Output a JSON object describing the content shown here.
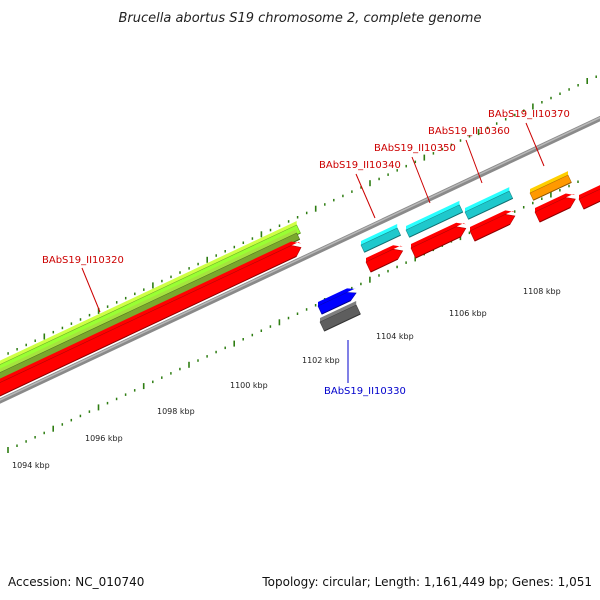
{
  "title": "Brucella abortus S19 chromosome 2, complete genome",
  "footer": {
    "accession": "Accession: NC_010740",
    "topology": "Topology: circular; Length: 1,161,449 bp; Genes: 1,051"
  },
  "colors": {
    "forward_label": "#cc0000",
    "reverse_label": "#0000cc",
    "backbone": "#8a8a8a",
    "tick": "#2e7d12",
    "cds": "#ff0000",
    "cyan": "#1fc8cc",
    "orange": "#ff9900",
    "green_light": "#99ff33",
    "green_dark": "#7aa82e",
    "blue": "#0000ff",
    "gray": "#5e5e5e"
  },
  "scale_labels": [
    "1094 kbp",
    "1096 kbp",
    "1098 kbp",
    "1100 kbp",
    "1102 kbp",
    "1104 kbp",
    "1106 kbp",
    "1108 kbp"
  ],
  "gene_labels": {
    "g10320": "BAbS19_II10320",
    "g10330": "BAbS19_II10330",
    "g10340": "BAbS19_II10340",
    "g10350": "BAbS19_II10350",
    "g10360": "BAbS19_II10360",
    "g10370": "BAbS19_II10370"
  }
}
